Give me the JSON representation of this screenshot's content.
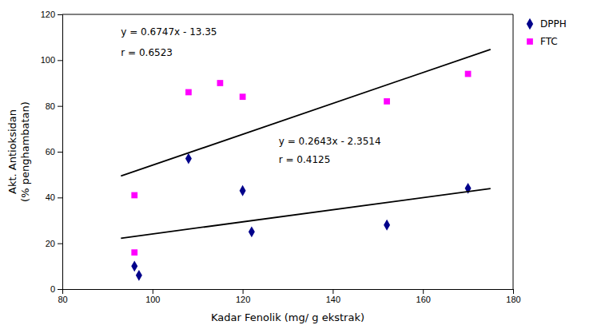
{
  "chart_data": {
    "type": "scatter",
    "x_label": "Kadar Fenolik (mg/ g ekstrak)",
    "y_label": "Akt. Antioksidan\n(% penghambatan)",
    "xlim": [
      80,
      180
    ],
    "ylim": [
      0,
      120
    ],
    "xticks": [
      80,
      100,
      120,
      140,
      160,
      180
    ],
    "yticks": [
      0,
      20,
      40,
      60,
      80,
      100,
      120
    ],
    "grid": false,
    "legend": "upper right",
    "series": [
      {
        "name": "DPPH",
        "type": "scatter",
        "marker": "diamond",
        "color": "#00008B",
        "x": [
          96,
          97,
          108,
          120,
          122,
          152,
          170
        ],
        "values": [
          10,
          6,
          57,
          43,
          25,
          28,
          44
        ]
      },
      {
        "name": "FTC",
        "type": "scatter",
        "marker": "square",
        "color": "#FF00FF",
        "x": [
          96,
          96,
          108,
          115,
          120,
          152,
          170
        ],
        "values": [
          41,
          16,
          86,
          90,
          84,
          82,
          94
        ]
      },
      {
        "type": "line",
        "line_style": "solid",
        "color": "#000000",
        "x": [
          93,
          175
        ],
        "values": [
          22.2285,
          43.9011
        ]
      },
      {
        "type": "line",
        "line_style": "solid",
        "color": "#000000",
        "x": [
          93,
          175
        ],
        "values": [
          49.3971,
          104.7225
        ]
      }
    ],
    "annotations": [
      {
        "text": "y = 0.6747x - 13.35",
        "x": 93,
        "y": 111
      },
      {
        "text": "r = 0.6523",
        "x": 93,
        "y": 102
      },
      {
        "text": "y = 0.2643x - 2.3514",
        "x": 128,
        "y": 63
      },
      {
        "text": "r = 0.4125",
        "x": 128,
        "y": 55
      }
    ]
  }
}
